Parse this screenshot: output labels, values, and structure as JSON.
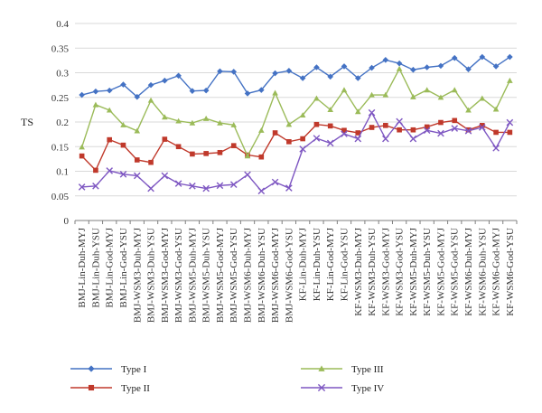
{
  "chart_data": {
    "type": "line",
    "title": "",
    "xlabel": "",
    "ylabel": "TS",
    "ylim": [
      0,
      0.4
    ],
    "yticks": [
      "0",
      "0.05",
      "0.1",
      "0.15",
      "0.2",
      "0.25",
      "0.3",
      "0.35",
      "0.4"
    ],
    "grid": "horizontal",
    "legend_position": "bottom",
    "categories": [
      "BMJ-Lin-Duh-MYJ",
      "BMJ-Lin-Duh-YSU",
      "BMJ-Lin-God-MYJ",
      "BMJ-Lin-God-YSU",
      "BMJ-WSM3-Duh-MYJ",
      "BMJ-WSM3-Duh-YSU",
      "BMJ-WSM3-God-MYJ",
      "BMJ-WSM3-God-YSU",
      "BMJ-WSM5-Duh-MYJ",
      "BMJ-WSM5-Duh-YSU",
      "BMJ-WSM5-God-MYJ",
      "BMJ-WSM5-God-YSU",
      "BMJ-WSM6-Duh-MYJ",
      "BMJ-WSM6-Duh-YSU",
      "BMJ-WSM6-God-MYJ",
      "BMJ-WSM6-God-YSU",
      "KF-Lin-Duh-MYJ",
      "KF-Lin-Duh-YSU",
      "KF-Lin-God-MYJ",
      "KF-Lin-God-YSU",
      "KF-WSM3-Duh-MYJ",
      "KF-WSM3-Duh-YSU",
      "KF-WSM3-God-MYJ",
      "KF-WSM3-God-YSU",
      "KF-WSM5-Duh-MYJ",
      "KF-WSM5-Duh-YSU",
      "KF-WSM5-God-MYJ",
      "KF-WSM5-God-YSU",
      "KF-WSM6-Duh-MYJ",
      "KF-WSM6-Duh-YSU",
      "KF-WSM6-God-MYJ",
      "KF-WSM6-God-YSU"
    ],
    "series": [
      {
        "name": "Type I",
        "color": "#4472c4",
        "marker": "diamond",
        "values": [
          0.255,
          0.262,
          0.264,
          0.276,
          0.251,
          0.275,
          0.284,
          0.294,
          0.263,
          0.264,
          0.303,
          0.302,
          0.258,
          0.265,
          0.299,
          0.304,
          0.289,
          0.311,
          0.292,
          0.313,
          0.289,
          0.31,
          0.326,
          0.319,
          0.306,
          0.311,
          0.314,
          0.33,
          0.307,
          0.332,
          0.313,
          0.332
        ]
      },
      {
        "name": "Type II",
        "color": "#c0392b",
        "marker": "square",
        "values": [
          0.131,
          0.102,
          0.164,
          0.153,
          0.123,
          0.118,
          0.165,
          0.15,
          0.135,
          0.136,
          0.138,
          0.152,
          0.133,
          0.129,
          0.178,
          0.16,
          0.166,
          0.195,
          0.192,
          0.183,
          0.178,
          0.189,
          0.193,
          0.184,
          0.184,
          0.19,
          0.199,
          0.203,
          0.184,
          0.193,
          0.179,
          0.179
        ]
      },
      {
        "name": "Type III",
        "color": "#9bbb59",
        "marker": "triangle",
        "values": [
          0.149,
          0.235,
          0.224,
          0.194,
          0.182,
          0.244,
          0.21,
          0.202,
          0.198,
          0.207,
          0.198,
          0.194,
          0.131,
          0.183,
          0.259,
          0.195,
          0.214,
          0.248,
          0.225,
          0.265,
          0.221,
          0.255,
          0.255,
          0.308,
          0.251,
          0.265,
          0.25,
          0.265,
          0.224,
          0.248,
          0.226,
          0.284
        ]
      },
      {
        "name": "Type IV",
        "color": "#7e57c2",
        "marker": "x",
        "values": [
          0.068,
          0.07,
          0.101,
          0.094,
          0.091,
          0.065,
          0.091,
          0.075,
          0.07,
          0.065,
          0.071,
          0.073,
          0.093,
          0.06,
          0.078,
          0.066,
          0.145,
          0.167,
          0.157,
          0.176,
          0.166,
          0.219,
          0.166,
          0.201,
          0.166,
          0.183,
          0.177,
          0.187,
          0.182,
          0.189,
          0.147,
          0.199
        ]
      }
    ]
  }
}
